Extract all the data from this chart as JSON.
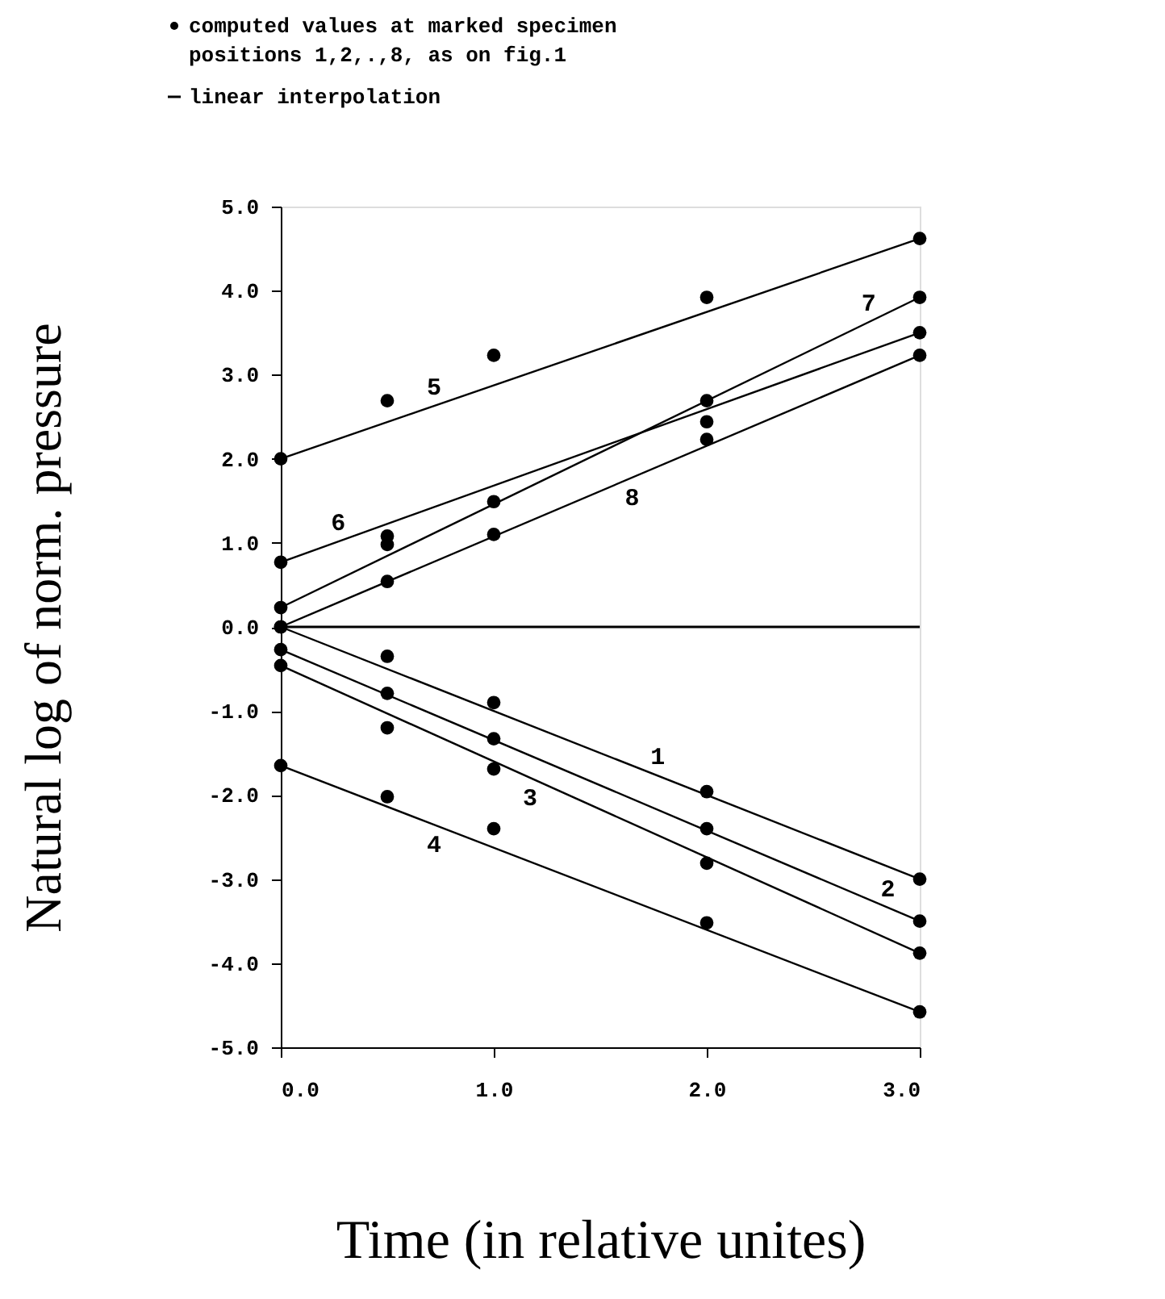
{
  "chart_data": {
    "type": "scatter",
    "xlabel": "Time (in relative unites)",
    "ylabel": "Natural log of norm. pressure",
    "xlim": [
      0,
      3
    ],
    "ylim": [
      -5,
      5
    ],
    "xticks": [
      {
        "value": 0,
        "label": "0.0"
      },
      {
        "value": 1,
        "label": "1.0"
      },
      {
        "value": 2,
        "label": "2.0"
      },
      {
        "value": 3,
        "label": "3.0"
      }
    ],
    "yticks": [
      {
        "value": -5,
        "label": "-5.0"
      },
      {
        "value": -4,
        "label": "-4.0"
      },
      {
        "value": -3,
        "label": "-3.0"
      },
      {
        "value": -2,
        "label": "-2.0"
      },
      {
        "value": -1,
        "label": "-1.0"
      },
      {
        "value": 0,
        "label": "0.0"
      },
      {
        "value": 1,
        "label": "1.0"
      },
      {
        "value": 2,
        "label": "2.0"
      },
      {
        "value": 3,
        "label": "3.0"
      },
      {
        "value": 4,
        "label": "4.0"
      },
      {
        "value": 5,
        "label": "5.0"
      }
    ],
    "grid": false,
    "legend": "top",
    "marker": "none",
    "line_style": "solid",
    "series": [
      {
        "name": "computed values at marked specimen\npositions 1,2,.,8, as on fig.1",
        "marker": "circle",
        "color": "#000000",
        "x": [
          0,
          0.5,
          1,
          2,
          3,
          0,
          0.5,
          1,
          2,
          3,
          0,
          0.5,
          1,
          2,
          3,
          0,
          0.5,
          1,
          2,
          3,
          0,
          0.5,
          1,
          2,
          3,
          0,
          0.5,
          1,
          2,
          3,
          0,
          0.5,
          1,
          2,
          3,
          0,
          0.5,
          1,
          2,
          3
        ],
        "values": [
          0,
          -0.35,
          -0.9,
          -1.96,
          -3.0,
          -0.27,
          -0.79,
          -1.33,
          -2.4,
          -3.5,
          -0.46,
          -1.2,
          -1.69,
          -2.81,
          -3.88,
          -1.65,
          -2.02,
          -2.4,
          -3.52,
          -4.58,
          2.0,
          2.69,
          3.23,
          3.92,
          4.62,
          0.77,
          1.08,
          null,
          2.44,
          3.5,
          0.23,
          0.98,
          1.49,
          2.69,
          3.92,
          0,
          0.54,
          1.1,
          2.23,
          3.23
        ]
      },
      {
        "type": "line",
        "name": "1",
        "color": "#000000",
        "x": [
          0,
          3
        ],
        "values": [
          0,
          -3.0
        ]
      },
      {
        "type": "line",
        "name": "2",
        "color": "#000000",
        "x": [
          0,
          3
        ],
        "values": [
          -0.27,
          -3.5
        ]
      },
      {
        "type": "line",
        "name": "3",
        "color": "#000000",
        "x": [
          0,
          3
        ],
        "values": [
          -0.46,
          -3.88
        ]
      },
      {
        "type": "line",
        "name": "4",
        "color": "#000000",
        "x": [
          0,
          3
        ],
        "values": [
          -1.65,
          -4.58
        ]
      },
      {
        "type": "line",
        "name": "5",
        "color": "#000000",
        "x": [
          0,
          3
        ],
        "values": [
          2.0,
          4.62
        ]
      },
      {
        "type": "line",
        "name": "6",
        "color": "#000000",
        "x": [
          0,
          3
        ],
        "values": [
          0.77,
          3.5
        ]
      },
      {
        "type": "line",
        "name": "7",
        "color": "#000000",
        "x": [
          0,
          3
        ],
        "values": [
          0.23,
          3.92
        ]
      },
      {
        "type": "line",
        "name": "8",
        "color": "#000000",
        "x": [
          0,
          3
        ],
        "values": [
          0,
          3.23
        ]
      }
    ],
    "ref_lines": [
      {
        "axis": "y",
        "value": 0,
        "color": "#000000"
      }
    ],
    "annotations": [
      "linear interpolation"
    ]
  }
}
